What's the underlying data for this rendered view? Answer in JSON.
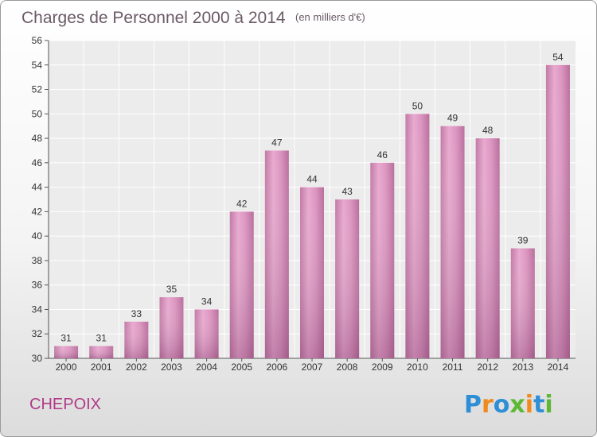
{
  "chart_data": {
    "type": "bar",
    "title": "Charges de Personnel 2000 à 2014",
    "subtitle": "(en milliers d'€)",
    "xlabel": "",
    "ylabel": "",
    "categories": [
      "2000",
      "2001",
      "2002",
      "2003",
      "2004",
      "2005",
      "2006",
      "2007",
      "2008",
      "2009",
      "2010",
      "2011",
      "2012",
      "2013",
      "2014"
    ],
    "values": [
      31,
      31,
      33,
      35,
      34,
      42,
      47,
      44,
      43,
      46,
      50,
      49,
      48,
      39,
      54
    ],
    "ylim": [
      30,
      56
    ],
    "yticks": [
      30,
      32,
      34,
      36,
      38,
      40,
      42,
      44,
      46,
      48,
      50,
      52,
      54,
      56
    ],
    "grid": true,
    "bar_color": "#d98cba"
  },
  "footer": {
    "commune": "CHEPOIX",
    "logo_text": "Proxiti",
    "logo_letters": [
      {
        "ch": "P",
        "color": "#2e8fd6"
      },
      {
        "ch": "r",
        "color": "#f08a1c"
      },
      {
        "ch": "o",
        "color": "#2e8fd6"
      },
      {
        "ch": "x",
        "color": "#5db833"
      },
      {
        "ch": "i",
        "color": "#f08a1c"
      },
      {
        "ch": "t",
        "color": "#2e8fd6"
      },
      {
        "ch": "i",
        "color": "#5db833"
      }
    ]
  }
}
